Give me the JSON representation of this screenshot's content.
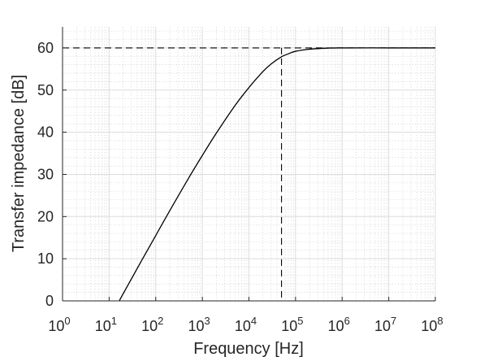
{
  "chart_data": {
    "type": "line",
    "title": "",
    "xlabel": "Frequency [Hz]",
    "ylabel": "Transfer impedance [dB]",
    "x_scale": "log",
    "x_range": [
      1,
      100000000
    ],
    "y_range": [
      0,
      65
    ],
    "grid": true,
    "minor_grid": true,
    "x_ticks": [
      {
        "value": 1,
        "base": "10",
        "exp": "0"
      },
      {
        "value": 10,
        "base": "10",
        "exp": "1"
      },
      {
        "value": 100,
        "base": "10",
        "exp": "2"
      },
      {
        "value": 1000,
        "base": "10",
        "exp": "3"
      },
      {
        "value": 10000,
        "base": "10",
        "exp": "4"
      },
      {
        "value": 100000,
        "base": "10",
        "exp": "5"
      },
      {
        "value": 1000000,
        "base": "10",
        "exp": "6"
      },
      {
        "value": 10000000,
        "base": "10",
        "exp": "7"
      },
      {
        "value": 100000000,
        "base": "10",
        "exp": "8"
      }
    ],
    "y_ticks": [
      {
        "value": 0,
        "label": "0"
      },
      {
        "value": 10,
        "label": "10"
      },
      {
        "value": 20,
        "label": "20"
      },
      {
        "value": 30,
        "label": "30"
      },
      {
        "value": 40,
        "label": "40"
      },
      {
        "value": 50,
        "label": "50"
      },
      {
        "value": 60,
        "label": "60"
      }
    ],
    "series": [
      {
        "style": "solid",
        "color": "#000000",
        "x": [
          16.5,
          20,
          30,
          50,
          100,
          200,
          500,
          1000,
          2000,
          5000,
          10000,
          20000,
          30000,
          50000,
          70000,
          100000,
          200000,
          500000,
          1000000,
          10000000,
          100000000
        ],
        "y": [
          0,
          1.7,
          5.2,
          9.6,
          15.5,
          21.4,
          29.0,
          34.5,
          39.8,
          46.3,
          50.6,
          54.4,
          56.2,
          57.9,
          58.6,
          59.2,
          59.7,
          59.95,
          60,
          60,
          60
        ]
      }
    ],
    "reference_lines": [
      {
        "orientation": "horizontal",
        "value": 60,
        "style": "dashed",
        "color": "#000000"
      },
      {
        "orientation": "vertical",
        "value": 50000,
        "style": "dashed",
        "color": "#000000"
      }
    ]
  }
}
